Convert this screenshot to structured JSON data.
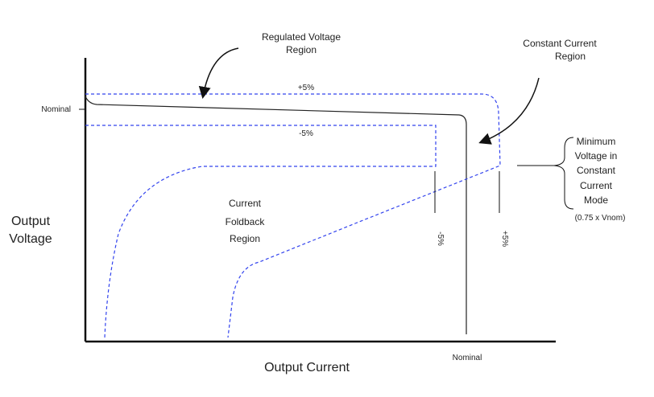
{
  "labels": {
    "regulated_line1": "Regulated Voltage",
    "regulated_line2": "Region",
    "constant_line1": "Constant Current",
    "constant_line2": "Region",
    "plus5_top": "+5%",
    "minus5_top": "-5%",
    "nominal_y": "Nominal",
    "nominal_x": "Nominal",
    "foldback_line1": "Current",
    "foldback_line2": "Foldback",
    "foldback_line3": "Region",
    "minus5_vertical": "-5%",
    "plus5_vertical": "+5%",
    "min_v_line1": "Minimum",
    "min_v_line2": "Voltage in",
    "min_v_line3": "Constant",
    "min_v_line4": "Current",
    "min_v_line5": "Mode",
    "min_v_note": "(0.75 x Vnom)",
    "y_axis_line1": "Output",
    "y_axis_line2": "Voltage",
    "x_axis": "Output Current"
  },
  "colors": {
    "axis": "#111111",
    "curve": "#222222",
    "tolerance_dashed": "#3344ee",
    "text": "#222222"
  }
}
